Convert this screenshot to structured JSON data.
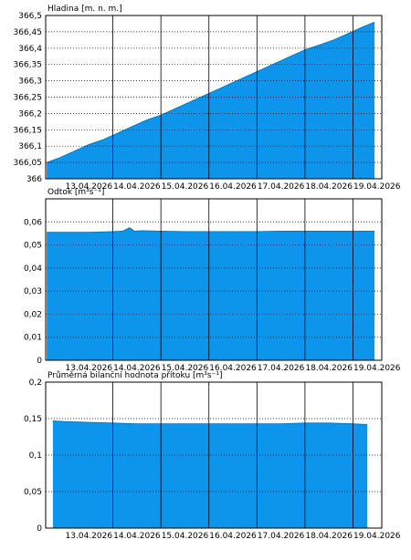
{
  "chart_data": [
    {
      "type": "area",
      "title": "Hladina [m. n. m.]",
      "x_tick_labels": [
        "13.04.2026",
        "14.04.2026",
        "15.04.2026",
        "16.04.2026",
        "17.04.2026",
        "18.04.2026",
        "19.04.2026"
      ],
      "y_tick_labels": [
        "366",
        "366,05",
        "366,1",
        "366,15",
        "366,2",
        "366,25",
        "366,3",
        "366,35",
        "366,4",
        "366,45",
        "366,5"
      ],
      "ylim": [
        366.0,
        366.5
      ],
      "xlim": [
        12.6,
        19.6
      ],
      "grid": true,
      "fill_color": "#0c95ea",
      "x": [
        12.62,
        12.9,
        13.2,
        13.5,
        13.8,
        14.1,
        14.4,
        14.7,
        15.0,
        15.3,
        15.6,
        15.9,
        16.2,
        16.5,
        16.8,
        17.1,
        17.4,
        17.7,
        18.0,
        18.3,
        18.6,
        18.9,
        19.2,
        19.45
      ],
      "values": [
        366.05,
        366.065,
        366.085,
        366.105,
        366.12,
        366.14,
        366.16,
        366.18,
        366.195,
        366.215,
        366.235,
        366.255,
        366.275,
        366.295,
        366.315,
        366.335,
        366.355,
        366.375,
        366.395,
        366.41,
        366.425,
        366.445,
        366.465,
        366.48
      ]
    },
    {
      "type": "area",
      "title": "Odtok [m³s⁻¹]",
      "x_tick_labels": [
        "13.04.2026",
        "14.04.2026",
        "15.04.2026",
        "16.04.2026",
        "17.04.2026",
        "18.04.2026",
        "19.04.2026"
      ],
      "y_tick_labels": [
        "0",
        "0,01",
        "0,02",
        "0,03",
        "0,04",
        "0,05",
        "0,06"
      ],
      "ylim": [
        0,
        0.07
      ],
      "xlim": [
        12.6,
        19.6
      ],
      "grid": true,
      "fill_color": "#0c95ea",
      "x": [
        12.62,
        13.5,
        14.0,
        14.2,
        14.35,
        14.45,
        14.6,
        15.0,
        15.5,
        16.0,
        16.5,
        17.0,
        17.5,
        18.0,
        18.5,
        19.0,
        19.45
      ],
      "values": [
        0.0555,
        0.0555,
        0.0558,
        0.056,
        0.0575,
        0.056,
        0.0562,
        0.056,
        0.0558,
        0.0558,
        0.0558,
        0.0558,
        0.056,
        0.056,
        0.056,
        0.056,
        0.056
      ]
    },
    {
      "type": "area",
      "title": "Průměrná bilanční hodnota přítoku [m³s⁻¹]",
      "x_tick_labels": [
        "13.04.2026",
        "14.04.2026",
        "15.04.2026",
        "16.04.2026",
        "17.04.2026",
        "18.04.2026",
        "19.04.2026"
      ],
      "y_tick_labels": [
        "0",
        "0,05",
        "0,1",
        "0,15",
        "0,2"
      ],
      "ylim": [
        0,
        0.2
      ],
      "xlim": [
        12.6,
        19.6
      ],
      "grid": true,
      "fill_color": "#0c95ea",
      "x": [
        12.75,
        13.0,
        13.5,
        14.0,
        14.5,
        15.0,
        15.5,
        16.0,
        16.5,
        17.0,
        17.5,
        18.0,
        18.5,
        19.0,
        19.3
      ],
      "values": [
        0.147,
        0.146,
        0.145,
        0.144,
        0.143,
        0.143,
        0.143,
        0.143,
        0.143,
        0.143,
        0.143,
        0.144,
        0.144,
        0.143,
        0.142
      ]
    }
  ]
}
